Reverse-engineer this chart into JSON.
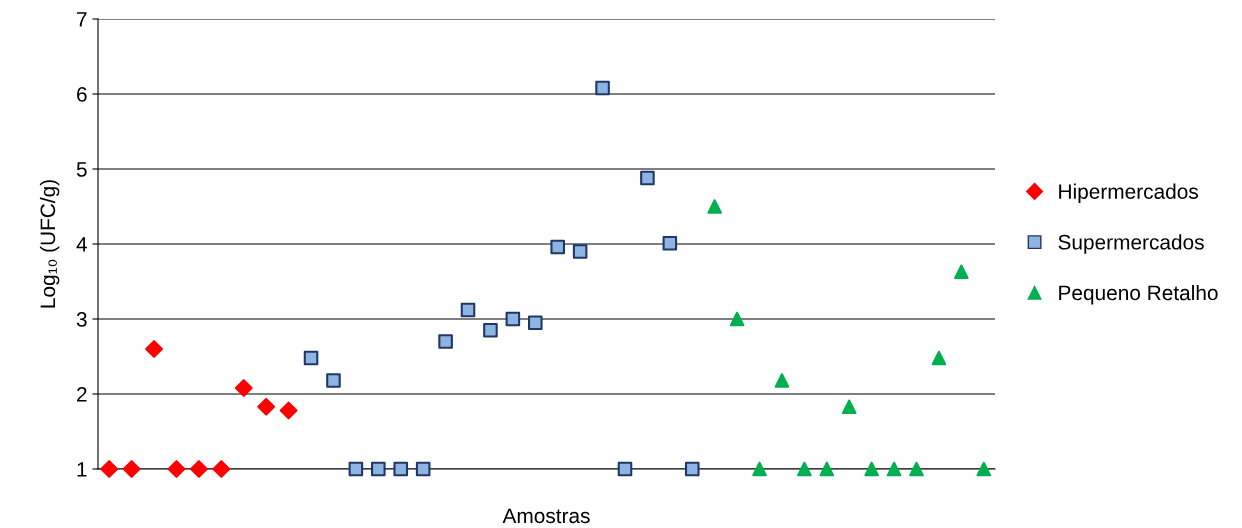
{
  "chart_data": {
    "type": "scatter",
    "xlabel": "Amostras",
    "ylabel": "Log₁₀ (UFC/g)",
    "categories": [
      null,
      null,
      null,
      null,
      null,
      null,
      null,
      null,
      null,
      null,
      null,
      null,
      null,
      null,
      null,
      null,
      null,
      null,
      null,
      null,
      null,
      null,
      null,
      null,
      null,
      null,
      null,
      null,
      null,
      null,
      null,
      null,
      null,
      null,
      null,
      null,
      null,
      null,
      null,
      null
    ],
    "series": [
      {
        "name": "Hipermercados",
        "color": "#ff0000",
        "marker": "diamond",
        "values": [
          1,
          1,
          2.6,
          1,
          1,
          1,
          2.08,
          1.83,
          1.78,
          null,
          null,
          null,
          null,
          null,
          null,
          null,
          null,
          null,
          null,
          null,
          null,
          null,
          null,
          null,
          null,
          null,
          null,
          null,
          null,
          null,
          null,
          null,
          null,
          null,
          null,
          null,
          null,
          null,
          null,
          null
        ]
      },
      {
        "name": "Supermercados",
        "color": "#8db4e2",
        "marker": "square",
        "values": [
          null,
          null,
          null,
          null,
          null,
          null,
          null,
          null,
          null,
          2.48,
          2.18,
          1,
          1,
          1,
          1,
          2.7,
          3.12,
          2.85,
          3.0,
          2.95,
          3.96,
          3.9,
          6.08,
          1,
          4.88,
          4.01,
          1,
          null,
          null,
          null,
          null,
          null,
          null,
          null,
          null,
          null,
          null,
          null,
          null,
          null
        ]
      },
      {
        "name": "Pequeno Retalho",
        "color": "#00b050",
        "marker": "triangle",
        "values": [
          null,
          null,
          null,
          null,
          null,
          null,
          null,
          null,
          null,
          null,
          null,
          null,
          null,
          null,
          null,
          null,
          null,
          null,
          null,
          null,
          null,
          null,
          null,
          null,
          null,
          null,
          null,
          4.5,
          3.0,
          1,
          2.18,
          1,
          1,
          1.83,
          1,
          1,
          1,
          2.48,
          3.63,
          1
        ]
      }
    ],
    "ylim": [
      1,
      7
    ],
    "yticks": [
      1,
      2,
      3,
      4,
      5,
      6,
      7
    ],
    "grid": "y",
    "legend": "right",
    "tick_labels": "y"
  }
}
